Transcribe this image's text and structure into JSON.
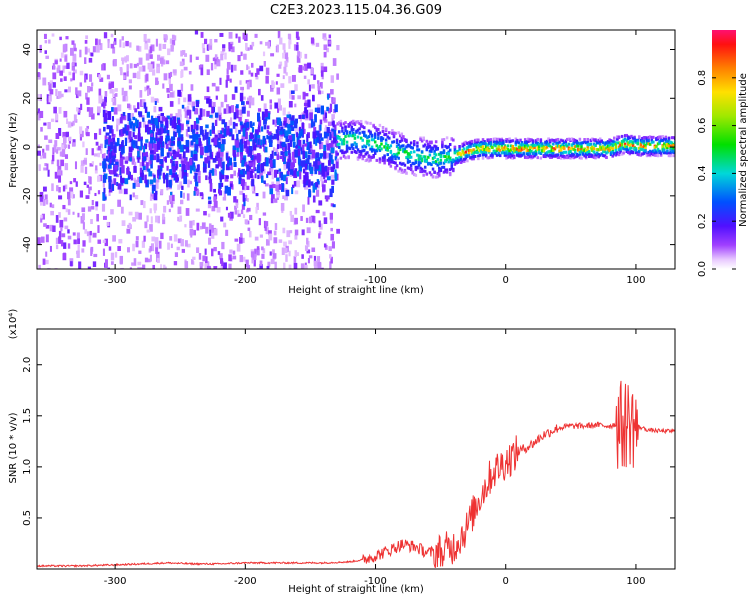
{
  "chart_data": [
    {
      "type": "heatmap",
      "title": "C2E3.2023.115.04.36.G09",
      "xlabel": "Height of straight line (km)",
      "ylabel": "Frequency (Hz)",
      "xlim": [
        -360,
        130
      ],
      "ylim": [
        -50,
        48
      ],
      "x_ticks": [
        -300,
        -200,
        -100,
        0,
        100
      ],
      "y_ticks": [
        -40,
        -20,
        0,
        20,
        40
      ],
      "colorbar": {
        "label": "Normalized spectral amplitude",
        "range": [
          0.0,
          1.0
        ],
        "ticks": [
          0.0,
          0.2,
          0.4,
          0.6,
          0.8
        ]
      },
      "ridge_frequency": {
        "x": [
          -130,
          -120,
          -110,
          -100,
          -90,
          -80,
          -70,
          -60,
          -50,
          -40,
          -30,
          -20,
          -10,
          0,
          20,
          40,
          60,
          80,
          90,
          100,
          110,
          130
        ],
        "y": [
          3,
          4,
          3,
          2,
          0,
          -2,
          -3,
          -4,
          -4,
          -3,
          -1,
          0,
          0,
          0,
          0,
          0,
          0,
          0,
          2,
          1,
          1,
          1
        ]
      },
      "grid": false
    },
    {
      "type": "line",
      "title": "",
      "xlabel": "Height of straight line (km)",
      "ylabel": "SNR (10 * v/v)",
      "y_multiplier": "(x10⁴)",
      "xlim": [
        -360,
        130
      ],
      "ylim": [
        0,
        2.35
      ],
      "x_ticks": [
        -300,
        -200,
        -100,
        0,
        100
      ],
      "y_ticks": [
        0.5,
        1.0,
        1.5,
        2.0
      ],
      "y_tick_labels": [
        "0.5",
        "1.0",
        "1.5",
        "2.0"
      ],
      "series": [
        {
          "color": "#ee3333",
          "x": [
            -360,
            -330,
            -300,
            -280,
            -260,
            -240,
            -220,
            -200,
            -180,
            -160,
            -140,
            -120,
            -110,
            -100,
            -90,
            -80,
            -70,
            -60,
            -50,
            -40,
            -30,
            -20,
            -10,
            0,
            10,
            20,
            30,
            40,
            50,
            60,
            70,
            80,
            85,
            90,
            95,
            100,
            105,
            110,
            120,
            130
          ],
          "y": [
            0.03,
            0.03,
            0.04,
            0.05,
            0.06,
            0.05,
            0.05,
            0.06,
            0.06,
            0.06,
            0.06,
            0.07,
            0.09,
            0.13,
            0.18,
            0.24,
            0.22,
            0.16,
            0.17,
            0.22,
            0.4,
            0.7,
            0.95,
            1.05,
            1.15,
            1.22,
            1.32,
            1.38,
            1.4,
            1.4,
            1.41,
            1.4,
            1.42,
            1.4,
            1.45,
            1.4,
            1.38,
            1.36,
            1.35,
            1.35
          ]
        }
      ],
      "grid": false
    }
  ]
}
